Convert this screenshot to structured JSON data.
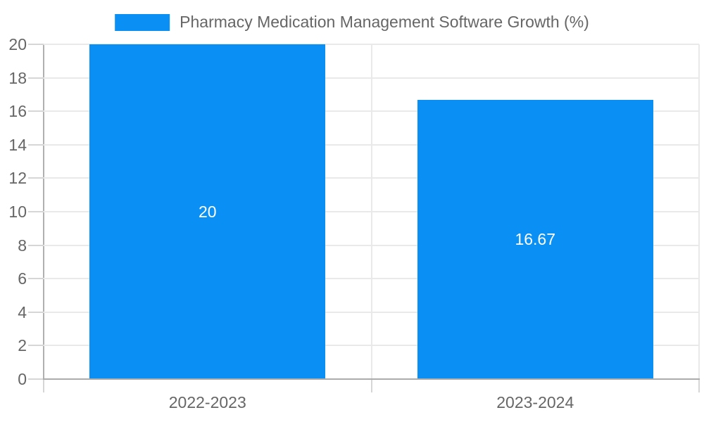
{
  "legend": {
    "label": "Pharmacy Medication Management Software Growth (%)",
    "swatch_color": "#0a90f5"
  },
  "chart_data": {
    "type": "bar",
    "categories": [
      "2022-2023",
      "2023-2024"
    ],
    "values": [
      20,
      16.67
    ],
    "bar_labels": [
      "20",
      "16.67"
    ],
    "series": [
      {
        "name": "Pharmacy Medication Management Software Growth (%)",
        "values": [
          20,
          16.67
        ]
      }
    ],
    "title": "",
    "xlabel": "",
    "ylabel": "",
    "ylim": [
      0,
      20
    ],
    "ytick_step": 2,
    "yticks": [
      0,
      2,
      4,
      6,
      8,
      10,
      12,
      14,
      16,
      18,
      20
    ],
    "grid": true,
    "legend_position": "top",
    "bar_color": "#0a90f5",
    "bar_label_color": "#ffffff",
    "category_fraction": 0.72
  },
  "colors": {
    "background": "#ffffff",
    "grid": "#e9e9e9",
    "axis": "#ababab",
    "tick": "#d6d6d6",
    "text": "#666666"
  }
}
